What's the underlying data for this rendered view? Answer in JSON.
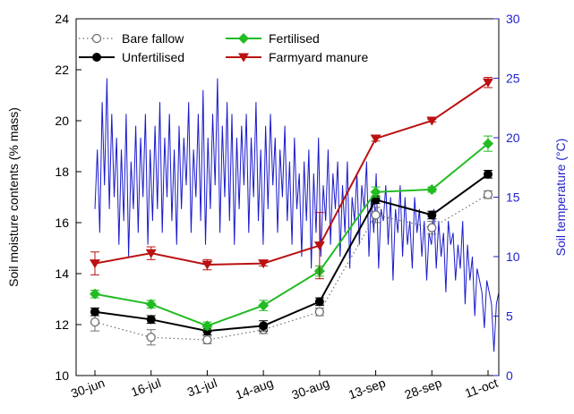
{
  "chart_data": {
    "type": "line",
    "categories": [
      "30-jun",
      "16-jul",
      "31-jul",
      "14-aug",
      "30-aug",
      "13-sep",
      "28-sep",
      "11-oct"
    ],
    "ylabel": "Soil moisture contents (% mass)",
    "ylim": [
      10,
      24
    ],
    "yticks": [
      10,
      12,
      14,
      16,
      18,
      20,
      22,
      24
    ],
    "y2label": "Soil temperature (°C)",
    "y2lim": [
      0,
      30
    ],
    "y2ticks": [
      0,
      5,
      10,
      15,
      20,
      25,
      30
    ],
    "legend_position": "top-left",
    "series": [
      {
        "name": "Bare fallow",
        "marker": "open-circle",
        "line": "dotted",
        "color": "#707070",
        "values": [
          12.1,
          11.5,
          11.4,
          11.8,
          12.5,
          16.3,
          15.8,
          17.1
        ],
        "errors": [
          0.35,
          0.3,
          0.15,
          0.15,
          0.15,
          0.3,
          0.25,
          0.15
        ]
      },
      {
        "name": "Unfertilised",
        "marker": "filled-circle",
        "line": "solid",
        "color": "#000000",
        "values": [
          12.5,
          12.2,
          11.75,
          11.95,
          12.9,
          16.9,
          16.3,
          17.9
        ],
        "errors": [
          0.15,
          0.15,
          0.15,
          0.2,
          0.15,
          0.15,
          0.15,
          0.15
        ]
      },
      {
        "name": "Fertilised",
        "marker": "diamond",
        "line": "solid",
        "color": "#22bb22",
        "values": [
          13.2,
          12.8,
          11.95,
          12.75,
          14.1,
          17.2,
          17.3,
          19.1
        ],
        "errors": [
          0.15,
          0.15,
          0.15,
          0.2,
          0.2,
          0.2,
          0.1,
          0.3
        ]
      },
      {
        "name": "Farmyard manure",
        "marker": "triangle-down",
        "line": "solid",
        "color": "#bb1111",
        "values": [
          14.4,
          14.8,
          14.35,
          14.4,
          15.1,
          19.3,
          20.0,
          21.5
        ],
        "errors": [
          0.45,
          0.25,
          0.2,
          0.1,
          1.3,
          0.1,
          0.05,
          0.2
        ]
      }
    ],
    "temperature_series": {
      "axis": "right",
      "color": "#1a1acc",
      "start_category": "30-jun",
      "end_category": "11-oct",
      "values": [
        14,
        19,
        12,
        23,
        16,
        25,
        14,
        22,
        15,
        20,
        11,
        19,
        13,
        22,
        10,
        18,
        14,
        21,
        12,
        20,
        15,
        22,
        11,
        19,
        13,
        21,
        14,
        23,
        12,
        20,
        15,
        22,
        13,
        19,
        11,
        21,
        14,
        20,
        16,
        23,
        12,
        19,
        15,
        22,
        13,
        24,
        11,
        20,
        14,
        22,
        16,
        25,
        12,
        21,
        15,
        23,
        13,
        22,
        11,
        20,
        14,
        21,
        16,
        22,
        12,
        20,
        15,
        23,
        13,
        19,
        11,
        21,
        14,
        22,
        16,
        20,
        12,
        19,
        15,
        21,
        13,
        18,
        11,
        20,
        14,
        17,
        10,
        18,
        13,
        19,
        9,
        17,
        12,
        20,
        10,
        16,
        13,
        19,
        11,
        17,
        14,
        18,
        10,
        16,
        12,
        18,
        9,
        15,
        13,
        17,
        11,
        16,
        14,
        18,
        10,
        15,
        12,
        17,
        9,
        14,
        13,
        16,
        11,
        15,
        8,
        14,
        12,
        16,
        10,
        15,
        11,
        13,
        9,
        15,
        12,
        14,
        10,
        13,
        8,
        12,
        11,
        14,
        9,
        13,
        10,
        12,
        7,
        13,
        11,
        12,
        8,
        11,
        9,
        13,
        6,
        11,
        8,
        10,
        5,
        9,
        8,
        7,
        4,
        8,
        7,
        6,
        2,
        6,
        7
      ]
    }
  }
}
